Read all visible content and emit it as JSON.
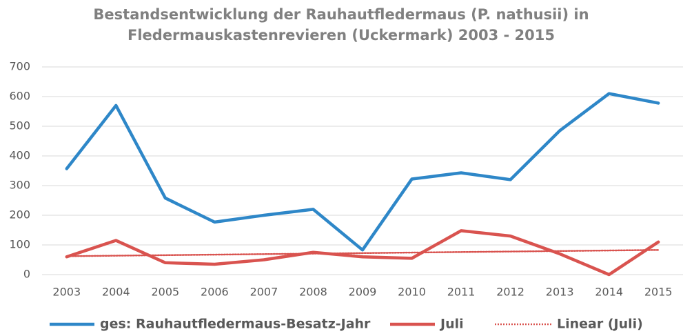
{
  "chart_data": {
    "type": "line",
    "title": [
      "Bestandsentwicklung der Rauhautfledermaus (P. nathusii) in",
      "Fledermauskastenrevieren (Uckermark) 2003 - 2015"
    ],
    "categories": [
      "2003",
      "2004",
      "2005",
      "2006",
      "2007",
      "2008",
      "2009",
      "2010",
      "2011",
      "2012",
      "2013",
      "2014",
      "2015"
    ],
    "series": [
      {
        "name": "ges: Rauhautfledermaus-Besatz-Jahr",
        "color": "#2e87c8",
        "style": "solid",
        "values": [
          357,
          570,
          258,
          177,
          200,
          220,
          83,
          322,
          343,
          320,
          485,
          610,
          578
        ]
      },
      {
        "name": "Juli",
        "color": "#d9534f",
        "style": "solid",
        "values": [
          60,
          115,
          40,
          35,
          50,
          75,
          60,
          55,
          148,
          130,
          70,
          0,
          110
        ]
      },
      {
        "name": "Linear (Juli)",
        "color": "#d9534f",
        "style": "dotted",
        "values": [
          62,
          63.75,
          65.5,
          67.25,
          69,
          70.75,
          72.5,
          74.25,
          76,
          77.75,
          79.5,
          81.25,
          83
        ]
      }
    ],
    "ylim": [
      0,
      700
    ],
    "yticks": [
      0,
      100,
      200,
      300,
      400,
      500,
      600,
      700
    ],
    "grid": true,
    "legend": "bottom"
  }
}
